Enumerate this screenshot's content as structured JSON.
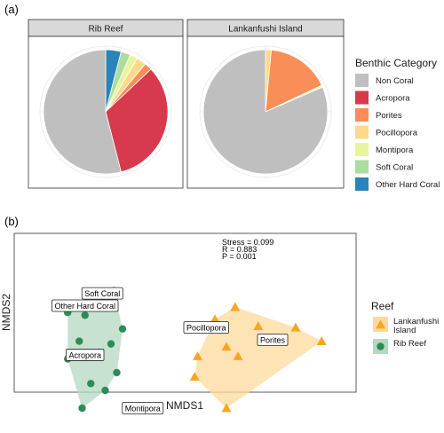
{
  "panel_a_label": "(a)",
  "panel_b_label": "(b)",
  "colors": {
    "Non Coral": "#bfbfbf",
    "Acropora": "#d63a4c",
    "Porites": "#fa8e58",
    "Pocillopora": "#fdd98c",
    "Montipora": "#e8f59a",
    "Soft Coral": "#abdd9f",
    "Other Hard Coral": "#2b83ba",
    "hull_lankanfushi": "#fdd99b",
    "hull_rib": "#b4d8c0",
    "pt_lankanfushi": "#f6a623",
    "pt_rib": "#2e8b57"
  },
  "legend_a": {
    "title": "Benthic Category",
    "items": [
      "Non Coral",
      "Acropora",
      "Porites",
      "Pocillopora",
      "Montipora",
      "Soft Coral",
      "Other Hard Coral"
    ]
  },
  "legend_b": {
    "title": "Reef",
    "items": [
      {
        "lines": [
          "Lankanfushi",
          "Island"
        ],
        "shape": "triangle",
        "colorKey": "pt_lankanfushi"
      },
      {
        "lines": [
          "Rib Reef"
        ],
        "shape": "circle",
        "colorKey": "pt_rib"
      }
    ]
  },
  "stats": {
    "line1": "Stress = 0.099",
    "line2": "R = 0.883",
    "line3": "P = 0.001"
  },
  "chart_data": [
    {
      "type": "pie",
      "facet": "Rib Reef",
      "slices": [
        {
          "category": "Other Hard Coral",
          "value": 0.04
        },
        {
          "category": "Soft Coral",
          "value": 0.025
        },
        {
          "category": "Montipora",
          "value": 0.02
        },
        {
          "category": "Pocillopora",
          "value": 0.025
        },
        {
          "category": "Porites",
          "value": 0.02
        },
        {
          "category": "Acropora",
          "value": 0.33
        },
        {
          "category": "Non Coral",
          "value": 0.54
        }
      ]
    },
    {
      "type": "pie",
      "facet": "Lankanfushi Island",
      "slices": [
        {
          "category": "Pocillopora",
          "value": 0.015
        },
        {
          "category": "Porites",
          "value": 0.165
        },
        {
          "category": "Montipora",
          "value": 0.005
        },
        {
          "category": "Non Coral",
          "value": 0.815
        }
      ]
    },
    {
      "type": "scatter",
      "xlabel": "NMDS1",
      "ylabel": "NMDS2",
      "xlim": [
        0,
        100
      ],
      "ylim": [
        0,
        100
      ],
      "series": [
        {
          "name": "Rib Reef",
          "colorKey": "pt_rib",
          "shape": "circle",
          "points": [
            [
              17,
              82
            ],
            [
              21,
              86
            ],
            [
              5,
              70
            ],
            [
              11,
              68
            ],
            [
              24,
              58
            ],
            [
              9,
              49
            ],
            [
              20,
              47
            ],
            [
              5,
              36
            ],
            [
              22,
              26
            ],
            [
              13,
              18
            ],
            [
              18,
              13
            ],
            [
              10,
              0
            ]
          ]
        },
        {
          "name": "Lankanfushi Island",
          "colorKey": "pt_lankanfushi",
          "shape": "triangle",
          "points": [
            [
              63,
              74
            ],
            [
              56,
              65
            ],
            [
              71,
              60
            ],
            [
              60,
              45
            ],
            [
              50,
              38
            ],
            [
              64,
              38
            ],
            [
              49,
              23
            ],
            [
              84,
              59
            ],
            [
              93,
              49
            ],
            [
              60,
              0
            ]
          ]
        }
      ],
      "annotations": [
        {
          "text": "Soft Coral",
          "x": 17,
          "y": 84
        },
        {
          "text": "Other Hard Coral",
          "x": 11,
          "y": 75
        },
        {
          "text": "Acropora",
          "x": 11,
          "y": 39
        },
        {
          "text": "Pocillopora",
          "x": 53,
          "y": 59
        },
        {
          "text": "Porites",
          "x": 76,
          "y": 50
        },
        {
          "text": "Montipora",
          "x": 31,
          "y": 0
        }
      ]
    }
  ]
}
